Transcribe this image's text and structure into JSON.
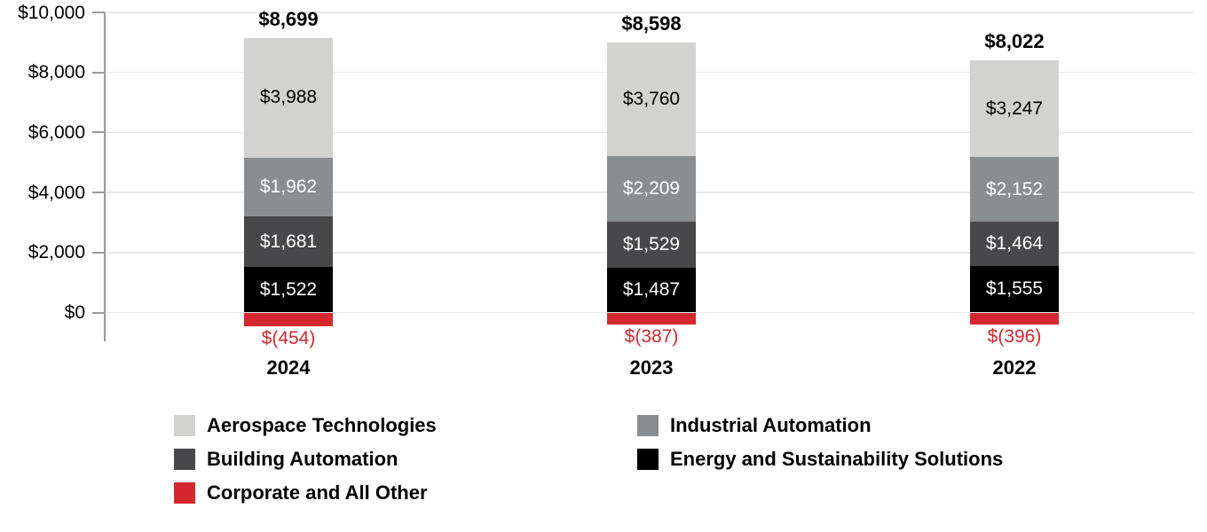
{
  "chart_data": {
    "type": "bar",
    "stacked": true,
    "title": "",
    "xlabel": "",
    "ylabel": "",
    "categories": [
      "2024",
      "2023",
      "2022"
    ],
    "series": [
      {
        "name": "Aerospace Technologies",
        "color": "#d2d2d0",
        "text_color": "#000000",
        "values": [
          3988,
          3760,
          3247
        ],
        "labels": [
          "$3,988",
          "$3,760",
          "$3,247"
        ]
      },
      {
        "name": "Industrial Automation",
        "color": "#8a8e91",
        "text_color": "#ffffff",
        "values": [
          1962,
          2209,
          2152
        ],
        "labels": [
          "$1,962",
          "$2,209",
          "$2,152"
        ]
      },
      {
        "name": "Building Automation",
        "color": "#48484a",
        "text_color": "#ffffff",
        "values": [
          1681,
          1529,
          1464
        ],
        "labels": [
          "$1,681",
          "$1,529",
          "$1,464"
        ]
      },
      {
        "name": "Energy and Sustainability Solutions",
        "color": "#000000",
        "text_color": "#ffffff",
        "values": [
          1522,
          1487,
          1555
        ],
        "labels": [
          "$1,522",
          "$1,487",
          "$1,555"
        ]
      },
      {
        "name": "Corporate and All Other",
        "color": "#d3282f",
        "text_color": "#d3282f",
        "values": [
          -454,
          -387,
          -396
        ],
        "labels": [
          "$(454)",
          "$(387)",
          "$(396)"
        ]
      }
    ],
    "totals": [
      8699,
      8598,
      8022
    ],
    "total_labels": [
      "$8,699",
      "$8,598",
      "$8,022"
    ],
    "y_axis": {
      "range": [
        0,
        10000
      ],
      "ticks": [
        0,
        2000,
        4000,
        6000,
        8000,
        10000
      ],
      "tick_labels": [
        "$0",
        "$2,000",
        "$4,000",
        "$6,000",
        "$8,000",
        "$10,000"
      ],
      "grid": true
    },
    "legend": {
      "position": "bottom",
      "columns": [
        [
          "Aerospace Technologies",
          "Building Automation",
          "Corporate and All Other"
        ],
        [
          "Industrial Automation",
          "Energy and Sustainability Solutions"
        ]
      ]
    },
    "colors": {
      "grid": "#e9e9e9",
      "axis": "#9a9a9a",
      "negative_text": "#d3282f"
    }
  }
}
